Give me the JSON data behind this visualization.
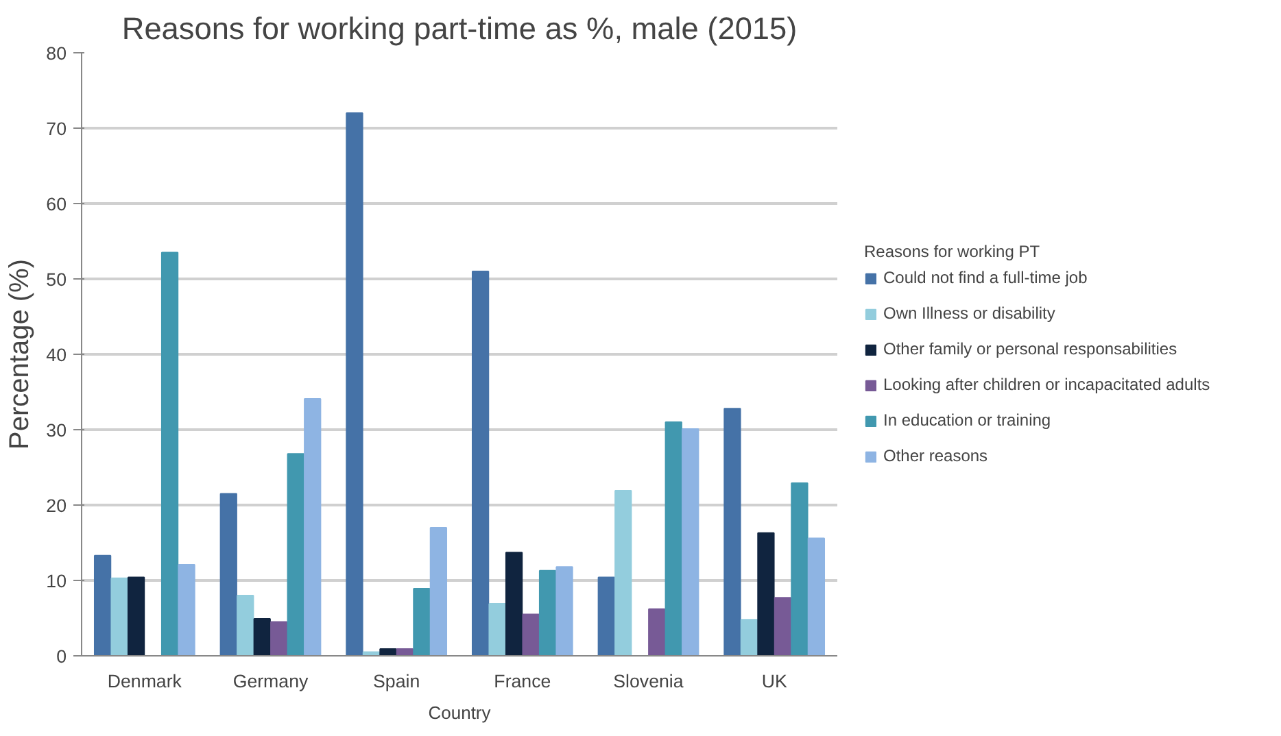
{
  "chart_data": {
    "type": "bar",
    "title": "Reasons for working part-time as %, male (2015)",
    "xlabel": "Country",
    "ylabel": "Percentage (%)",
    "legend_title": "Reasons for working PT",
    "categories": [
      "Denmark",
      "Germany",
      "Spain",
      "France",
      "Slovenia",
      "UK"
    ],
    "series": [
      {
        "name": "Could not find a full-time job",
        "color": "#4572a7",
        "values": [
          13.3,
          21.5,
          72,
          51,
          10.4,
          32.8
        ]
      },
      {
        "name": "Own Illness or disability",
        "color": "#93cddd",
        "values": [
          10.3,
          8,
          0.5,
          6.9,
          21.9,
          4.8
        ]
      },
      {
        "name": "Other family or personal responsabilities",
        "color": "#10243f",
        "values": [
          10.4,
          4.9,
          0.9,
          13.7,
          null,
          16.3
        ]
      },
      {
        "name": "Looking after children or incapacitated adults",
        "color": "#775a96",
        "values": [
          null,
          4.5,
          0.9,
          5.5,
          6.2,
          7.7
        ]
      },
      {
        "name": "In education or training",
        "color": "#4198af",
        "values": [
          53.5,
          26.8,
          8.9,
          11.3,
          31,
          22.9
        ]
      },
      {
        "name": "Other reasons",
        "color": "#8eb4e3",
        "values": [
          12.1,
          34.1,
          17,
          11.8,
          30.1,
          15.6
        ]
      }
    ],
    "ylim": [
      0,
      80
    ],
    "yticks": [
      0,
      10,
      20,
      30,
      40,
      50,
      60,
      70,
      80
    ],
    "grid": "y",
    "legend": "right"
  }
}
